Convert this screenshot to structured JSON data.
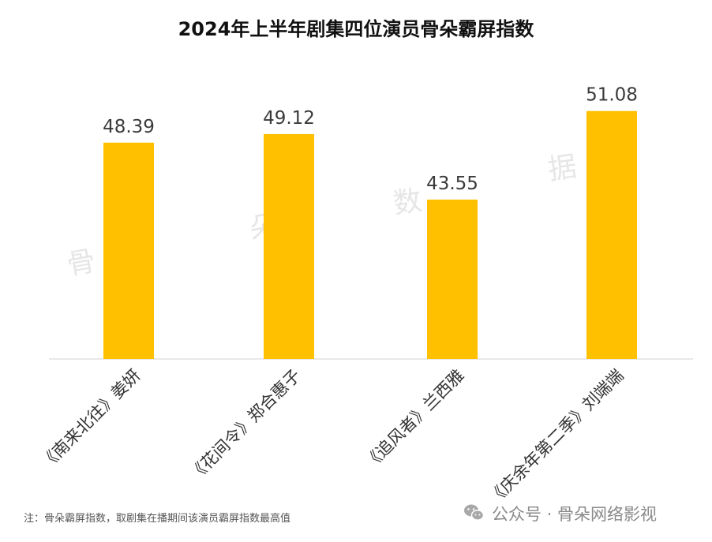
{
  "chart_data": {
    "type": "bar",
    "title": "2024年上半年剧集四位演员骨朵霸屏指数",
    "categories": [
      "《南来北往》姜妍",
      "《花间令》郑合惠子",
      "《追风者》兰西雅",
      "《庆余年第二季》刘端端"
    ],
    "values": [
      48.39,
      49.12,
      43.55,
      51.08
    ],
    "value_labels": [
      "48.39",
      "49.12",
      "43.55",
      "51.08"
    ],
    "xlabel": "",
    "ylabel": "",
    "ylim": [
      30,
      52
    ],
    "grid": false,
    "legend": "none",
    "bar_color": "#FFC000"
  },
  "watermarks": [
    "骨",
    "朵",
    "数",
    "据"
  ],
  "footnote": "注：骨朵霸屏指数，取剧集在播期间该演员霸屏指数最高值",
  "brand": {
    "text": "公众号 · 骨朵网络影视",
    "icon": "wechat-icon"
  },
  "colors": {
    "bar": "#FFC000",
    "axis": "#d9d9d9"
  }
}
